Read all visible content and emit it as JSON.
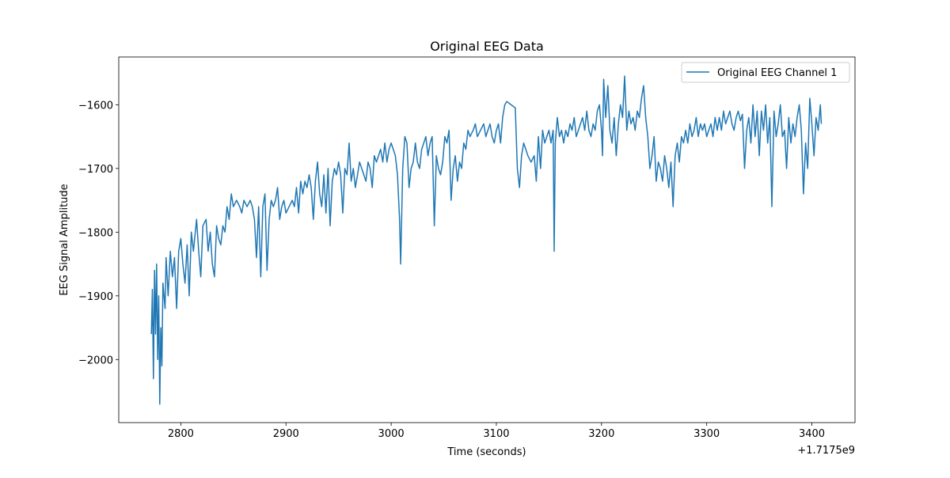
{
  "chart_data": {
    "type": "line",
    "title": "Original EEG Data",
    "xlabel": "Time (seconds)",
    "ylabel": "EEG Signal Amplitude",
    "x_offset_label": "+1.7175e9",
    "xlim": [
      2741,
      3441
    ],
    "ylim": [
      -2099,
      -1525
    ],
    "xticks": [
      2800,
      2900,
      3000,
      3100,
      3200,
      3300,
      3400
    ],
    "xtick_labels": [
      "2800",
      "2900",
      "3000",
      "3100",
      "3200",
      "3300",
      "3400"
    ],
    "yticks": [
      -1600,
      -1700,
      -1800,
      -1900,
      -2000
    ],
    "ytick_labels": [
      "−1600",
      "−1700",
      "−1800",
      "−1900",
      "−2000"
    ],
    "grid": false,
    "legend_placement": "upper right",
    "series": [
      {
        "name": "Original EEG Channel 1",
        "color": "#1f77b4",
        "x": [
          2772,
          2773,
          2774,
          2775,
          2776,
          2777,
          2778,
          2779,
          2780,
          2781,
          2782,
          2783,
          2785,
          2786,
          2788,
          2790,
          2792,
          2794,
          2796,
          2798,
          2800,
          2802,
          2804,
          2806,
          2808,
          2810,
          2812,
          2815,
          2817,
          2819,
          2821,
          2824,
          2826,
          2828,
          2830,
          2832,
          2834,
          2836,
          2838,
          2840,
          2842,
          2844,
          2846,
          2848,
          2850,
          2853,
          2856,
          2858,
          2860,
          2863,
          2866,
          2868,
          2870,
          2872,
          2874,
          2876,
          2878,
          2880,
          2882,
          2884,
          2886,
          2888,
          2890,
          2892,
          2894,
          2896,
          2898,
          2900,
          2903,
          2906,
          2908,
          2910,
          2912,
          2914,
          2916,
          2918,
          2920,
          2922,
          2924,
          2926,
          2928,
          2930,
          2932,
          2934,
          2936,
          2938,
          2940,
          2942,
          2944,
          2946,
          2948,
          2950,
          2952,
          2954,
          2956,
          2958,
          2960,
          2962,
          2964,
          2966,
          2968,
          2970,
          2972,
          2974,
          2976,
          2978,
          2980,
          2982,
          2984,
          2986,
          2988,
          2990,
          2992,
          2994,
          2996,
          2998,
          3000,
          3002,
          3004,
          3006,
          3008,
          3009,
          3011,
          3013,
          3015,
          3017,
          3019,
          3021,
          3023,
          3025,
          3027,
          3029,
          3031,
          3033,
          3035,
          3037,
          3039,
          3041,
          3043,
          3045,
          3047,
          3049,
          3051,
          3053,
          3055,
          3057,
          3059,
          3061,
          3063,
          3065,
          3067,
          3069,
          3071,
          3073,
          3075,
          3078,
          3080,
          3082,
          3085,
          3088,
          3090,
          3092,
          3094,
          3096,
          3098,
          3100,
          3102,
          3104,
          3106,
          3108,
          3110,
          3114,
          3118,
          3120,
          3122,
          3124,
          3126,
          3128,
          3130,
          3133,
          3136,
          3138,
          3140,
          3142,
          3144,
          3146,
          3148,
          3150,
          3152,
          3154,
          3155,
          3156,
          3158,
          3160,
          3162,
          3164,
          3166,
          3168,
          3170,
          3172,
          3174,
          3176,
          3178,
          3180,
          3182,
          3184,
          3186,
          3188,
          3190,
          3192,
          3194,
          3196,
          3198,
          3200,
          3201,
          3202,
          3204,
          3206,
          3208,
          3210,
          3212,
          3214,
          3216,
          3218,
          3220,
          3222,
          3224,
          3226,
          3228,
          3230,
          3232,
          3234,
          3236,
          3238,
          3240,
          3242,
          3244,
          3246,
          3248,
          3250,
          3252,
          3254,
          3256,
          3258,
          3260,
          3262,
          3264,
          3266,
          3268,
          3270,
          3272,
          3274,
          3276,
          3278,
          3280,
          3282,
          3284,
          3286,
          3288,
          3290,
          3292,
          3294,
          3296,
          3298,
          3300,
          3302,
          3304,
          3306,
          3308,
          3310,
          3312,
          3314,
          3316,
          3318,
          3320,
          3322,
          3324,
          3326,
          3328,
          3330,
          3332,
          3334,
          3336,
          3338,
          3340,
          3342,
          3344,
          3346,
          3348,
          3350,
          3352,
          3354,
          3356,
          3358,
          3360,
          3362,
          3364,
          3366,
          3368,
          3370,
          3372,
          3374,
          3376,
          3378,
          3380,
          3382,
          3384,
          3386,
          3388,
          3390,
          3392,
          3394,
          3396,
          3398,
          3400,
          3402,
          3404,
          3406,
          3408,
          3409
        ],
        "y": [
          -1960,
          -1890,
          -2030,
          -1860,
          -1960,
          -1850,
          -2000,
          -1900,
          -2070,
          -1950,
          -2010,
          -1880,
          -1920,
          -1840,
          -1900,
          -1830,
          -1870,
          -1840,
          -1920,
          -1830,
          -1810,
          -1850,
          -1880,
          -1820,
          -1900,
          -1800,
          -1830,
          -1780,
          -1830,
          -1870,
          -1790,
          -1780,
          -1830,
          -1800,
          -1850,
          -1870,
          -1790,
          -1810,
          -1820,
          -1790,
          -1800,
          -1760,
          -1780,
          -1740,
          -1760,
          -1750,
          -1760,
          -1770,
          -1750,
          -1760,
          -1750,
          -1760,
          -1780,
          -1840,
          -1760,
          -1870,
          -1760,
          -1740,
          -1860,
          -1780,
          -1750,
          -1760,
          -1750,
          -1730,
          -1780,
          -1760,
          -1750,
          -1770,
          -1760,
          -1750,
          -1760,
          -1730,
          -1770,
          -1720,
          -1740,
          -1720,
          -1730,
          -1710,
          -1730,
          -1780,
          -1720,
          -1690,
          -1740,
          -1760,
          -1710,
          -1770,
          -1700,
          -1790,
          -1720,
          -1700,
          -1710,
          -1690,
          -1710,
          -1770,
          -1700,
          -1710,
          -1660,
          -1720,
          -1700,
          -1730,
          -1710,
          -1690,
          -1700,
          -1710,
          -1720,
          -1690,
          -1700,
          -1730,
          -1680,
          -1690,
          -1680,
          -1670,
          -1690,
          -1660,
          -1690,
          -1670,
          -1660,
          -1670,
          -1680,
          -1710,
          -1780,
          -1850,
          -1700,
          -1650,
          -1660,
          -1730,
          -1700,
          -1690,
          -1660,
          -1690,
          -1700,
          -1670,
          -1660,
          -1650,
          -1680,
          -1660,
          -1650,
          -1790,
          -1680,
          -1700,
          -1710,
          -1690,
          -1650,
          -1660,
          -1640,
          -1750,
          -1700,
          -1680,
          -1720,
          -1690,
          -1700,
          -1660,
          -1670,
          -1640,
          -1650,
          -1640,
          -1630,
          -1650,
          -1640,
          -1630,
          -1650,
          -1640,
          -1630,
          -1650,
          -1660,
          -1640,
          -1630,
          -1660,
          -1620,
          -1600,
          -1595,
          -1600,
          -1605,
          -1700,
          -1730,
          -1680,
          -1660,
          -1670,
          -1680,
          -1690,
          -1680,
          -1720,
          -1650,
          -1700,
          -1640,
          -1660,
          -1650,
          -1640,
          -1660,
          -1640,
          -1830,
          -1660,
          -1620,
          -1650,
          -1640,
          -1660,
          -1640,
          -1650,
          -1630,
          -1640,
          -1620,
          -1650,
          -1640,
          -1630,
          -1620,
          -1640,
          -1610,
          -1640,
          -1650,
          -1630,
          -1640,
          -1610,
          -1600,
          -1640,
          -1680,
          -1560,
          -1620,
          -1570,
          -1640,
          -1660,
          -1620,
          -1680,
          -1630,
          -1600,
          -1620,
          -1555,
          -1640,
          -1610,
          -1630,
          -1620,
          -1640,
          -1610,
          -1620,
          -1590,
          -1570,
          -1620,
          -1650,
          -1700,
          -1680,
          -1650,
          -1720,
          -1690,
          -1700,
          -1720,
          -1680,
          -1700,
          -1730,
          -1690,
          -1760,
          -1680,
          -1660,
          -1690,
          -1650,
          -1660,
          -1640,
          -1660,
          -1630,
          -1650,
          -1640,
          -1620,
          -1650,
          -1630,
          -1640,
          -1630,
          -1650,
          -1640,
          -1630,
          -1650,
          -1620,
          -1640,
          -1620,
          -1640,
          -1610,
          -1630,
          -1620,
          -1610,
          -1630,
          -1640,
          -1620,
          -1610,
          -1625,
          -1615,
          -1700,
          -1640,
          -1620,
          -1660,
          -1600,
          -1650,
          -1610,
          -1680,
          -1610,
          -1640,
          -1600,
          -1660,
          -1620,
          -1760,
          -1610,
          -1650,
          -1630,
          -1600,
          -1650,
          -1640,
          -1700,
          -1620,
          -1660,
          -1630,
          -1650,
          -1620,
          -1600,
          -1640,
          -1740,
          -1660,
          -1700,
          -1590,
          -1630,
          -1680,
          -1620,
          -1640,
          -1600,
          -1630
        ]
      }
    ]
  }
}
